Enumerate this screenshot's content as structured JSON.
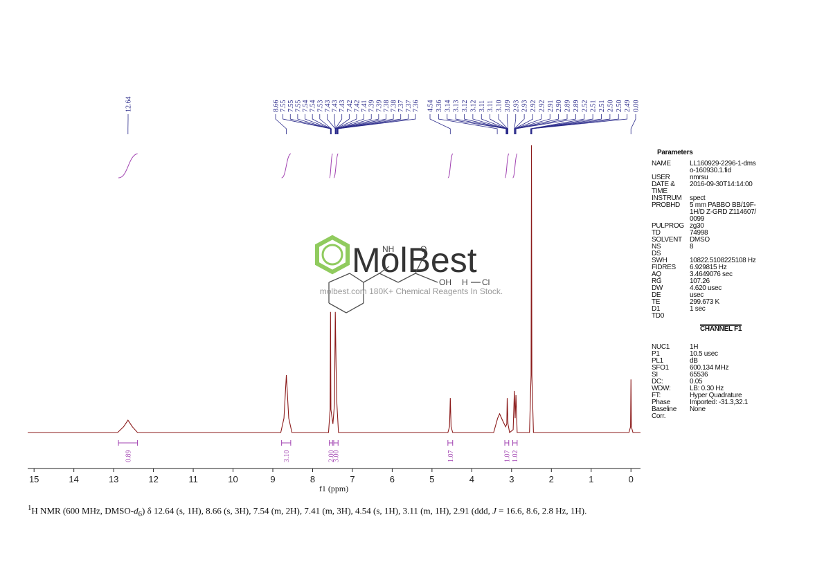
{
  "chart_data": {
    "type": "line",
    "xlabel": "f1 (ppm)",
    "xlim": [
      15.16,
      -0.24
    ],
    "ylim": [
      -5,
      100
    ],
    "xticks": [
      15,
      14,
      13,
      12,
      11,
      10,
      9,
      8,
      7,
      6,
      5,
      4,
      3,
      2,
      1,
      0
    ],
    "series": [
      {
        "color": "#8b1a1a",
        "x": [
          15.16,
          12.9,
          12.75,
          12.64,
          12.53,
          12.4,
          8.8,
          8.72,
          8.66,
          8.6,
          8.52,
          7.6,
          7.56,
          7.55,
          7.54,
          7.49,
          7.45,
          7.43,
          7.41,
          7.39,
          7.35,
          4.6,
          4.56,
          4.54,
          4.52,
          4.48,
          3.45,
          3.35,
          3.3,
          3.22,
          3.15,
          3.12,
          3.11,
          3.09,
          3.05,
          2.96,
          2.93,
          2.91,
          2.89,
          2.86,
          2.55,
          2.51,
          2.5,
          2.49,
          2.45,
          0.05,
          0.01,
          0,
          -0.01,
          -0.05,
          -0.24
        ],
        "values": [
          0,
          0,
          2,
          4.3,
          2,
          0,
          0,
          5,
          20,
          5,
          0,
          0,
          8,
          42,
          8,
          3,
          10,
          42,
          23,
          10,
          0,
          0,
          2,
          12,
          2,
          0,
          0,
          5,
          6.5,
          4,
          2,
          3,
          12,
          3,
          0,
          1,
          14.5,
          5,
          13,
          0,
          0,
          20,
          100,
          20,
          0,
          0,
          2,
          18.5,
          2,
          0,
          0
        ]
      }
    ],
    "peak_label_groups": [
      [
        "12.64"
      ],
      [
        "8.66",
        "7.55",
        "7.55",
        "7.55",
        "7.54",
        "7.54",
        "7.53",
        "7.43",
        "7.43",
        "7.43",
        "7.42",
        "7.42",
        "7.41",
        "7.39",
        "7.39",
        "7.38",
        "7.38",
        "7.37",
        "7.37",
        "7.36"
      ],
      [
        "4.54",
        "3.36",
        "3.14",
        "3.13",
        "3.12",
        "3.12",
        "3.11",
        "3.11",
        "3.10",
        "3.09",
        "2.93",
        "2.93",
        "2.92",
        "2.92",
        "2.91",
        "2.90",
        "2.89",
        "2.89",
        "2.52",
        "2.51",
        "2.51",
        "2.50",
        "2.50",
        "2.49",
        "0.00"
      ]
    ],
    "integrals": {
      "color": "#a040b0",
      "ranges": [
        [
          12.88,
          12.4
        ],
        [
          8.78,
          8.55
        ],
        [
          7.58,
          7.5
        ],
        [
          7.47,
          7.36
        ],
        [
          4.6,
          4.48
        ],
        [
          3.17,
          3.07
        ],
        [
          2.97,
          2.86
        ]
      ],
      "values": [
        0.89,
        3.1,
        2,
        3,
        1.07,
        1.07,
        1.02
      ],
      "value_labels": [
        "0.89",
        "3.10",
        "2.00",
        "3.00",
        "1.07",
        "1.07",
        "1.02"
      ]
    }
  },
  "parameters": {
    "title": "Parameters",
    "rows": [
      [
        "NAME",
        "LL160929-2296-1-dmso-160930.1.fid"
      ],
      [
        "USER",
        "nmrsu"
      ],
      [
        "DATE & TIME",
        "2016-09-30T14:14:00"
      ],
      [
        "INSTRUM",
        "spect"
      ],
      [
        "PROBHD",
        "5 mm PABBO BB/19F-1H/D Z-GRD Z114607/0099"
      ],
      [
        "PULPROG",
        "zg30"
      ],
      [
        "TD",
        "74998"
      ],
      [
        "SOLVENT",
        "DMSO"
      ],
      [
        "NS",
        "8"
      ],
      [
        "DS"
      ],
      [
        "SWH",
        "10822.5108225108 Hz"
      ],
      [
        "FIDRES",
        "6.929815 Hz"
      ],
      [
        "AQ",
        "3.4649076 sec"
      ],
      [
        "RG",
        "107.26"
      ],
      [
        "DW",
        "4.620 usec"
      ],
      [
        "DE",
        "usec"
      ],
      [
        "TE",
        "299.673 K"
      ],
      [
        "D1",
        "1 sec"
      ],
      [
        "TD0"
      ]
    ],
    "channel": "CHANNEL F1",
    "channel_rows": [
      [
        "NUC1",
        "1H"
      ],
      [
        "P1",
        "10.5 usec"
      ],
      [
        "PL1",
        "dB"
      ],
      [
        "SFO1",
        "600.134 MHz"
      ],
      [
        "SI",
        "65536"
      ],
      [
        "DC:",
        "0.05"
      ],
      [
        "WDW:",
        "LB: 0.30 Hz"
      ],
      [
        "FT:",
        "Hyper Quadrature"
      ],
      [
        "Phase",
        "Imported: -31.3,32.1"
      ],
      [
        "Baseline Corr.",
        "None"
      ]
    ]
  },
  "watermark": {
    "brand": "MolBest",
    "tagline": "molbest.com 180K+ Chemical Reagents In Stock.",
    "atoms": [
      "NH",
      "O",
      "OH",
      "H",
      "Cl"
    ]
  },
  "caption": [
    "1",
    "H NMR (600 MHz, DMSO-",
    "d",
    "6",
    ") δ 12.64 (s, 1H), 8.66 (s, 3H), 7.54 (m, 2H), 7.41 (m, 3H), 4.54 (s, 1H), 3.11 (m, 1H), 2.91 (ddd, ",
    "J",
    " = 16.6, 8.6, 2.8 Hz, 1H)."
  ]
}
